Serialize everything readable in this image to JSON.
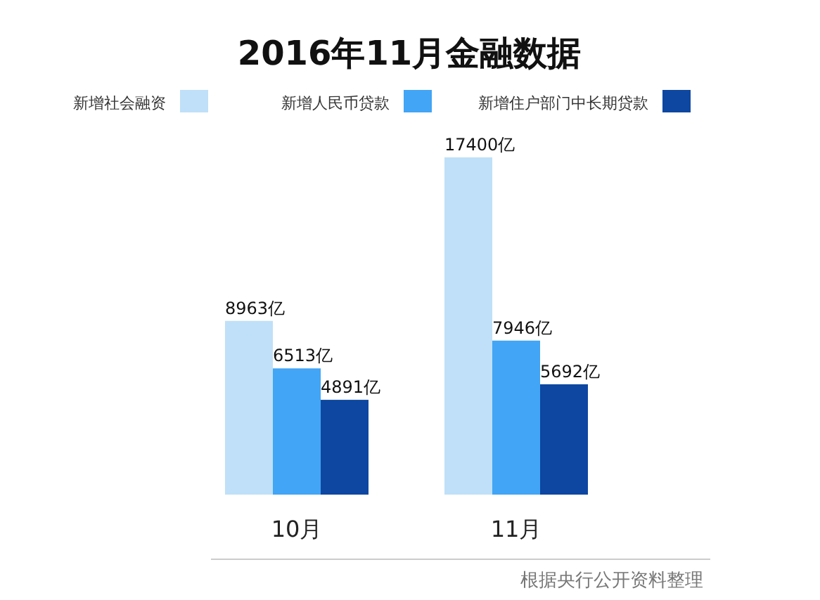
{
  "chart_data": {
    "type": "bar",
    "title": "2016年11月金融数据",
    "categories": [
      "10月",
      "11月"
    ],
    "series": [
      {
        "name": "新增社会融资",
        "color": "#bfe0f8",
        "values": [
          8963,
          17400
        ],
        "value_labels": [
          "8963亿",
          "17400亿"
        ]
      },
      {
        "name": "新增人民币贷款",
        "color": "#42a5f5",
        "values": [
          6513,
          7946
        ],
        "value_labels": [
          "6513亿",
          "7946亿"
        ]
      },
      {
        "name": "新增住户部门中长期贷款",
        "color": "#0d47a1",
        "values": [
          4891,
          5692
        ],
        "value_labels": [
          "4891亿",
          "5692亿"
        ]
      }
    ],
    "legend": "top",
    "annotations": [
      "根据央行公开资料整理"
    ]
  }
}
